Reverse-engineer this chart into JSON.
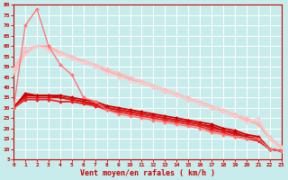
{
  "xlabel": "Vent moyen/en rafales ( km/h )",
  "background_color": "#c8ecec",
  "grid_color": "#ffffff",
  "x": [
    0,
    1,
    2,
    3,
    4,
    5,
    6,
    7,
    8,
    9,
    10,
    11,
    12,
    13,
    14,
    15,
    16,
    17,
    18,
    19,
    20,
    21,
    22,
    23
  ],
  "lines": [
    {
      "y": [
        47,
        56,
        60,
        60,
        56,
        54,
        52,
        50,
        48,
        46,
        44,
        42,
        40,
        38,
        36,
        34,
        32,
        30,
        28,
        26,
        24,
        22,
        15,
        10
      ],
      "color": "#ffaaaa",
      "lw": 1.0,
      "marker": "D",
      "ms": 2.0
    },
    {
      "y": [
        48,
        57,
        60,
        60,
        57,
        55,
        52,
        50,
        48,
        46,
        44,
        42,
        40,
        38,
        36,
        34,
        32,
        30,
        28,
        26,
        24,
        22,
        15,
        10
      ],
      "color": "#ffaaaa",
      "lw": 1.0,
      "marker": "D",
      "ms": 2.0
    },
    {
      "y": [
        49,
        59,
        60,
        59,
        57,
        55,
        53,
        51,
        49,
        47,
        45,
        43,
        41,
        39,
        37,
        35,
        33,
        31,
        29,
        27,
        25,
        23,
        16,
        11
      ],
      "color": "#ffbbbb",
      "lw": 1.0,
      "marker": "D",
      "ms": 2.0
    },
    {
      "y": [
        48,
        56,
        60,
        58,
        56,
        54,
        52,
        50,
        47,
        45,
        43,
        42,
        40,
        38,
        36,
        34,
        32,
        30,
        28,
        26,
        23,
        25,
        15,
        10
      ],
      "color": "#ffcccc",
      "lw": 1.0,
      "marker": "D",
      "ms": 2.0
    },
    {
      "y": [
        30,
        37,
        36,
        36,
        36,
        35,
        34,
        33,
        31,
        30,
        29,
        28,
        27,
        26,
        25,
        24,
        23,
        22,
        20,
        19,
        17,
        16,
        10,
        9
      ],
      "color": "#cc0000",
      "lw": 1.3,
      "marker": "D",
      "ms": 2.0
    },
    {
      "y": [
        30,
        36,
        36,
        36,
        35,
        34,
        33,
        32,
        30,
        29,
        28,
        27,
        26,
        25,
        24,
        23,
        22,
        21,
        19,
        18,
        16,
        15,
        10,
        9
      ],
      "color": "#cc0000",
      "lw": 1.3,
      "marker": "D",
      "ms": 2.0
    },
    {
      "y": [
        31,
        35,
        35,
        35,
        35,
        34,
        33,
        31,
        30,
        29,
        28,
        27,
        26,
        25,
        24,
        23,
        22,
        20,
        19,
        17,
        16,
        14,
        10,
        9
      ],
      "color": "#dd1111",
      "lw": 1.3,
      "marker": "D",
      "ms": 2.0
    },
    {
      "y": [
        30,
        34,
        34,
        34,
        33,
        33,
        32,
        31,
        29,
        28,
        27,
        26,
        25,
        24,
        23,
        22,
        21,
        19,
        18,
        16,
        15,
        14,
        10,
        9
      ],
      "color": "#ee2222",
      "lw": 1.3,
      "marker": "D",
      "ms": 2.0
    },
    {
      "y": [
        30,
        70,
        78,
        60,
        51,
        46,
        35,
        33,
        29,
        27,
        26,
        25,
        24,
        23,
        22,
        21,
        20,
        18,
        17,
        16,
        15,
        15,
        10,
        9
      ],
      "color": "#ff7777",
      "lw": 1.0,
      "marker": "D",
      "ms": 2.0
    }
  ],
  "ylim": [
    5,
    80
  ],
  "yticks": [
    5,
    10,
    15,
    20,
    25,
    30,
    35,
    40,
    45,
    50,
    55,
    60,
    65,
    70,
    75,
    80
  ],
  "xlim": [
    0,
    23
  ],
  "xticks": [
    0,
    1,
    2,
    3,
    4,
    5,
    6,
    7,
    8,
    9,
    10,
    11,
    12,
    13,
    14,
    15,
    16,
    17,
    18,
    19,
    20,
    21,
    22,
    23
  ],
  "tick_color": "#cc0000",
  "label_color": "#cc0000",
  "axis_color": "#cc0000",
  "fontname": "monospace",
  "arrow_chars": [
    "↳",
    "↑",
    "↑",
    "↗",
    "↗",
    "↗",
    "↗",
    "↗",
    "↗",
    "↗",
    "↗",
    "↗",
    "↗",
    "↗",
    "↗",
    "↗",
    "↱",
    "↱",
    "↱",
    "↱",
    "↱",
    "↑",
    "↑"
  ]
}
